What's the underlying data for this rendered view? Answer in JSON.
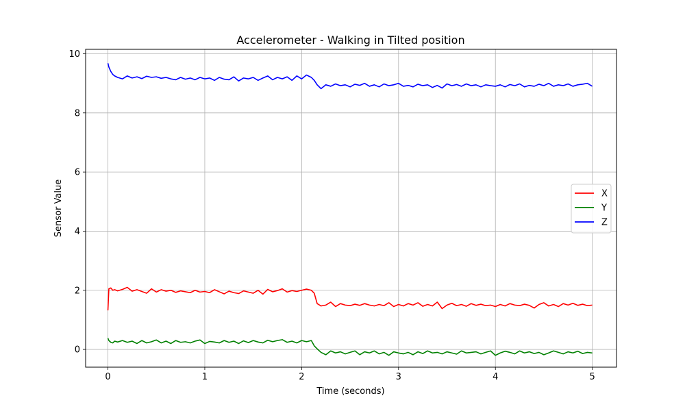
{
  "chart_data": {
    "type": "line",
    "title": "Accelerometer - Walking in Tilted position",
    "xlabel": "Time (seconds)",
    "ylabel": "Sensor Value",
    "xlim": [
      -0.23,
      5.25
    ],
    "ylim": [
      -0.6,
      10.15
    ],
    "xticks": [
      0,
      1,
      2,
      3,
      4,
      5
    ],
    "yticks": [
      0,
      2,
      4,
      6,
      8,
      10
    ],
    "grid": true,
    "legend": "center-right",
    "series": [
      {
        "name": "X",
        "color": "#ff0000",
        "x": [
          0,
          0.01,
          0.03,
          0.05,
          0.07,
          0.1,
          0.15,
          0.2,
          0.25,
          0.3,
          0.35,
          0.4,
          0.45,
          0.5,
          0.55,
          0.6,
          0.65,
          0.7,
          0.75,
          0.8,
          0.85,
          0.9,
          0.95,
          1.0,
          1.05,
          1.1,
          1.15,
          1.2,
          1.25,
          1.3,
          1.35,
          1.4,
          1.45,
          1.5,
          1.55,
          1.6,
          1.65,
          1.7,
          1.75,
          1.8,
          1.85,
          1.9,
          1.95,
          2.0,
          2.05,
          2.1,
          2.13,
          2.16,
          2.2,
          2.25,
          2.3,
          2.35,
          2.4,
          2.45,
          2.5,
          2.55,
          2.6,
          2.65,
          2.7,
          2.75,
          2.8,
          2.85,
          2.9,
          2.95,
          3.0,
          3.05,
          3.1,
          3.15,
          3.2,
          3.25,
          3.3,
          3.35,
          3.4,
          3.45,
          3.5,
          3.55,
          3.6,
          3.65,
          3.7,
          3.75,
          3.8,
          3.85,
          3.9,
          3.95,
          4.0,
          4.05,
          4.1,
          4.15,
          4.2,
          4.25,
          4.3,
          4.35,
          4.4,
          4.45,
          4.5,
          4.55,
          4.6,
          4.65,
          4.7,
          4.75,
          4.8,
          4.85,
          4.9,
          4.95,
          5.0
        ],
        "y": [
          1.32,
          2.05,
          2.08,
          2.0,
          2.02,
          1.98,
          2.03,
          2.1,
          1.97,
          2.02,
          1.96,
          1.9,
          2.05,
          1.94,
          2.02,
          1.97,
          2.0,
          1.93,
          1.98,
          1.95,
          1.92,
          2.0,
          1.94,
          1.96,
          1.92,
          2.02,
          1.95,
          1.88,
          1.97,
          1.92,
          1.89,
          1.98,
          1.94,
          1.9,
          2.0,
          1.87,
          2.03,
          1.95,
          1.99,
          2.05,
          1.94,
          1.99,
          1.96,
          2.0,
          2.04,
          2.0,
          1.9,
          1.55,
          1.47,
          1.5,
          1.6,
          1.45,
          1.55,
          1.5,
          1.48,
          1.53,
          1.49,
          1.55,
          1.5,
          1.47,
          1.52,
          1.48,
          1.58,
          1.45,
          1.52,
          1.47,
          1.55,
          1.5,
          1.58,
          1.46,
          1.52,
          1.47,
          1.6,
          1.38,
          1.5,
          1.56,
          1.48,
          1.52,
          1.46,
          1.55,
          1.49,
          1.53,
          1.48,
          1.5,
          1.45,
          1.52,
          1.47,
          1.55,
          1.5,
          1.48,
          1.53,
          1.49,
          1.4,
          1.52,
          1.58,
          1.47,
          1.52,
          1.45,
          1.55,
          1.5,
          1.56,
          1.49,
          1.53,
          1.48,
          1.5
        ]
      },
      {
        "name": "Y",
        "color": "#008000",
        "x": [
          0,
          0.01,
          0.03,
          0.05,
          0.07,
          0.1,
          0.15,
          0.2,
          0.25,
          0.3,
          0.35,
          0.4,
          0.45,
          0.5,
          0.55,
          0.6,
          0.65,
          0.7,
          0.75,
          0.8,
          0.85,
          0.9,
          0.95,
          1.0,
          1.05,
          1.1,
          1.15,
          1.2,
          1.25,
          1.3,
          1.35,
          1.4,
          1.45,
          1.5,
          1.55,
          1.6,
          1.65,
          1.7,
          1.75,
          1.8,
          1.85,
          1.9,
          1.95,
          2.0,
          2.05,
          2.1,
          2.13,
          2.16,
          2.2,
          2.25,
          2.3,
          2.35,
          2.4,
          2.45,
          2.5,
          2.55,
          2.6,
          2.65,
          2.7,
          2.75,
          2.8,
          2.85,
          2.9,
          2.95,
          3.0,
          3.05,
          3.1,
          3.15,
          3.2,
          3.25,
          3.3,
          3.35,
          3.4,
          3.45,
          3.5,
          3.55,
          3.6,
          3.65,
          3.7,
          3.75,
          3.8,
          3.85,
          3.9,
          3.95,
          4.0,
          4.05,
          4.1,
          4.15,
          4.2,
          4.25,
          4.3,
          4.35,
          4.4,
          4.45,
          4.5,
          4.55,
          4.6,
          4.65,
          4.7,
          4.75,
          4.8,
          4.85,
          4.9,
          4.95,
          5.0
        ],
        "y": [
          0.38,
          0.3,
          0.24,
          0.22,
          0.28,
          0.25,
          0.3,
          0.24,
          0.28,
          0.2,
          0.3,
          0.22,
          0.26,
          0.32,
          0.22,
          0.28,
          0.2,
          0.3,
          0.24,
          0.26,
          0.22,
          0.28,
          0.32,
          0.2,
          0.27,
          0.25,
          0.22,
          0.3,
          0.24,
          0.28,
          0.2,
          0.29,
          0.23,
          0.3,
          0.25,
          0.22,
          0.31,
          0.26,
          0.3,
          0.33,
          0.24,
          0.28,
          0.22,
          0.3,
          0.26,
          0.3,
          0.12,
          0.02,
          -0.1,
          -0.18,
          -0.05,
          -0.12,
          -0.08,
          -0.15,
          -0.1,
          -0.05,
          -0.18,
          -0.08,
          -0.12,
          -0.05,
          -0.15,
          -0.1,
          -0.2,
          -0.08,
          -0.12,
          -0.15,
          -0.1,
          -0.18,
          -0.08,
          -0.14,
          -0.05,
          -0.12,
          -0.1,
          -0.15,
          -0.08,
          -0.12,
          -0.16,
          -0.05,
          -0.12,
          -0.1,
          -0.08,
          -0.15,
          -0.1,
          -0.05,
          -0.2,
          -0.12,
          -0.06,
          -0.1,
          -0.15,
          -0.05,
          -0.12,
          -0.08,
          -0.14,
          -0.1,
          -0.18,
          -0.12,
          -0.05,
          -0.1,
          -0.15,
          -0.08,
          -0.12,
          -0.06,
          -0.14,
          -0.1,
          -0.12
        ]
      },
      {
        "name": "Z",
        "color": "#0000ff",
        "x": [
          0,
          0.01,
          0.03,
          0.05,
          0.07,
          0.1,
          0.15,
          0.2,
          0.25,
          0.3,
          0.35,
          0.4,
          0.45,
          0.5,
          0.55,
          0.6,
          0.65,
          0.7,
          0.75,
          0.8,
          0.85,
          0.9,
          0.95,
          1.0,
          1.05,
          1.1,
          1.15,
          1.2,
          1.25,
          1.3,
          1.35,
          1.4,
          1.45,
          1.5,
          1.55,
          1.6,
          1.65,
          1.7,
          1.75,
          1.8,
          1.85,
          1.9,
          1.95,
          2.0,
          2.05,
          2.1,
          2.13,
          2.16,
          2.2,
          2.25,
          2.3,
          2.35,
          2.4,
          2.45,
          2.5,
          2.55,
          2.6,
          2.65,
          2.7,
          2.75,
          2.8,
          2.85,
          2.9,
          2.95,
          3.0,
          3.05,
          3.1,
          3.15,
          3.2,
          3.25,
          3.3,
          3.35,
          3.4,
          3.45,
          3.5,
          3.55,
          3.6,
          3.65,
          3.7,
          3.75,
          3.8,
          3.85,
          3.9,
          3.95,
          4.0,
          4.05,
          4.1,
          4.15,
          4.2,
          4.25,
          4.3,
          4.35,
          4.4,
          4.45,
          4.5,
          4.55,
          4.6,
          4.65,
          4.7,
          4.75,
          4.8,
          4.85,
          4.9,
          4.95,
          5.0
        ],
        "y": [
          9.68,
          9.55,
          9.4,
          9.3,
          9.25,
          9.2,
          9.15,
          9.25,
          9.18,
          9.22,
          9.16,
          9.24,
          9.2,
          9.22,
          9.17,
          9.2,
          9.15,
          9.12,
          9.2,
          9.14,
          9.18,
          9.12,
          9.2,
          9.15,
          9.18,
          9.1,
          9.2,
          9.14,
          9.12,
          9.22,
          9.08,
          9.18,
          9.15,
          9.2,
          9.1,
          9.18,
          9.25,
          9.12,
          9.2,
          9.15,
          9.22,
          9.1,
          9.25,
          9.15,
          9.28,
          9.2,
          9.1,
          8.95,
          8.82,
          8.95,
          8.9,
          8.98,
          8.92,
          8.95,
          8.88,
          8.97,
          8.93,
          9.0,
          8.9,
          8.95,
          8.88,
          8.98,
          8.92,
          8.95,
          9.0,
          8.9,
          8.93,
          8.88,
          8.97,
          8.92,
          8.95,
          8.86,
          8.93,
          8.84,
          8.98,
          8.92,
          8.96,
          8.9,
          8.98,
          8.92,
          8.95,
          8.88,
          8.95,
          8.92,
          8.9,
          8.95,
          8.88,
          8.96,
          8.92,
          8.98,
          8.88,
          8.93,
          8.9,
          8.97,
          8.92,
          9.0,
          8.9,
          8.95,
          8.92,
          8.98,
          8.9,
          8.95,
          8.97,
          9.0,
          8.9
        ]
      }
    ]
  }
}
